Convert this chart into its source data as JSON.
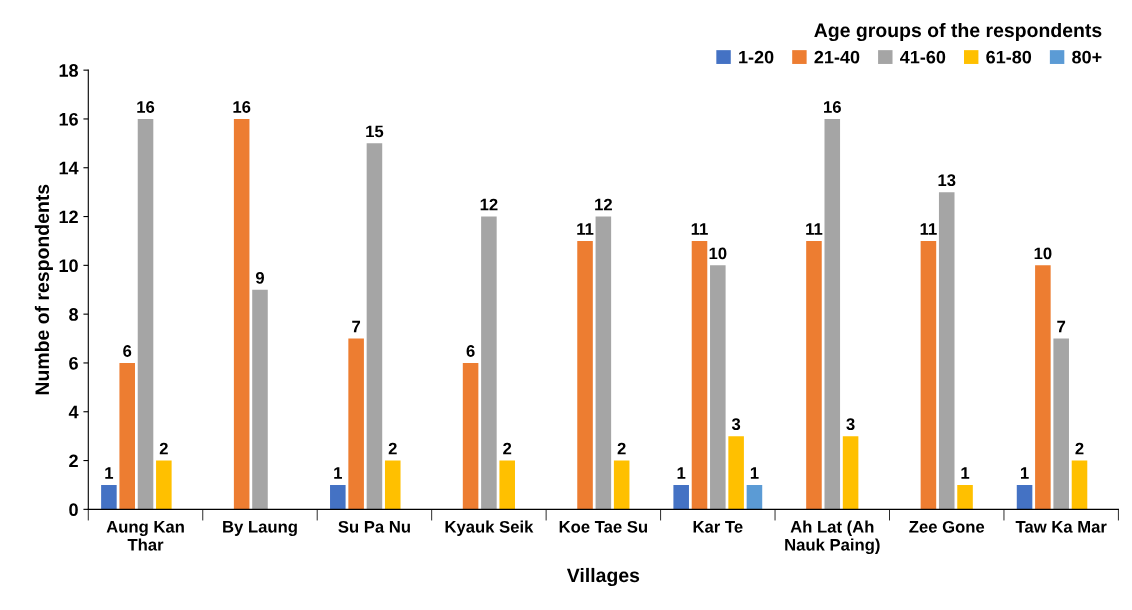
{
  "chart_data": {
    "type": "bar",
    "xlabel": "Villages",
    "ylabel": "Numbe of respondents",
    "legend_title": "Age groups of the respondents",
    "categories": [
      "Aung Kan\nThar",
      "By Laung",
      "Su Pa Nu",
      "Kyauk Seik",
      "Koe Tae Su",
      "Kar Te",
      "Ah Lat (Ah\nNauk Paing)",
      "Zee Gone",
      "Taw Ka Mar"
    ],
    "series": [
      {
        "name": "1-20",
        "color": "#4472c4",
        "values": [
          1,
          null,
          1,
          null,
          null,
          1,
          null,
          null,
          1
        ]
      },
      {
        "name": "21-40",
        "color": "#ed7d31",
        "values": [
          6,
          16,
          7,
          6,
          11,
          11,
          11,
          11,
          10
        ]
      },
      {
        "name": "41-60",
        "color": "#a5a5a5",
        "values": [
          16,
          9,
          15,
          12,
          12,
          10,
          16,
          13,
          7
        ]
      },
      {
        "name": "61-80",
        "color": "#ffc000",
        "values": [
          2,
          null,
          2,
          2,
          2,
          3,
          3,
          1,
          2
        ]
      },
      {
        "name": "80+",
        "color": "#5b9bd5",
        "values": [
          null,
          null,
          null,
          null,
          null,
          1,
          null,
          null,
          null
        ]
      }
    ],
    "ylim": [
      0,
      18
    ],
    "yticks": [
      0,
      2,
      4,
      6,
      8,
      10,
      12,
      14,
      16,
      18
    ],
    "grid": false,
    "legend": "top right",
    "data_labels": true
  }
}
